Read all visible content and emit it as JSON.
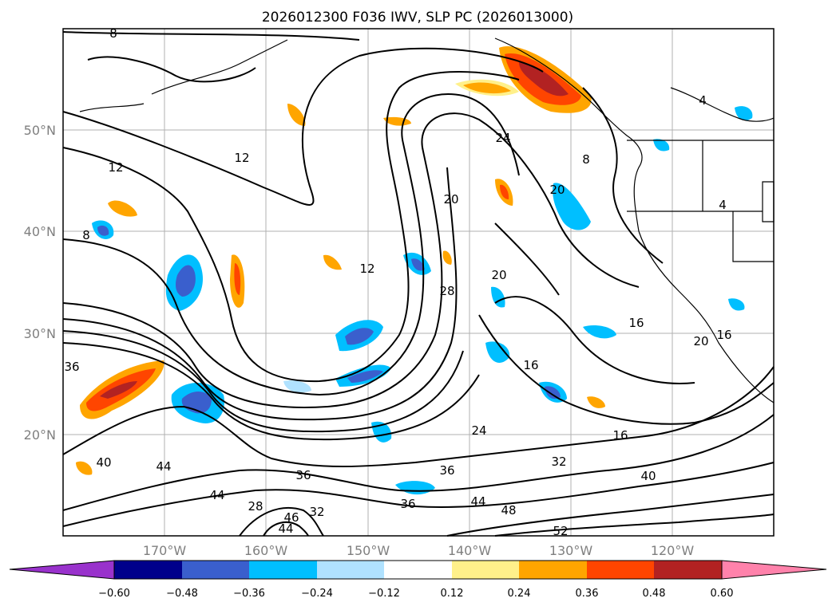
{
  "title": "2026012300 F036 IWV, SLP PC (2026013000)",
  "lat_labels": [
    "50°N",
    "40°N",
    "30°N",
    "20°N"
  ],
  "lon_labels": [
    "170°W",
    "160°W",
    "150°W",
    "140°W",
    "130°W",
    "120°W"
  ],
  "colorbar": {
    "tick_labels": [
      "−0.60",
      "−0.48",
      "−0.36",
      "−0.24",
      "−0.12",
      "0.12",
      "0.24",
      "0.36",
      "0.48",
      "0.60"
    ],
    "colors": [
      "#9932cc",
      "#00008b",
      "#3a5fcd",
      "#00bfff",
      "#b0e2ff",
      "#ffffff",
      "#fff08a",
      "#ffa500",
      "#ff4500",
      "#b22222",
      "#ff82ab"
    ]
  },
  "contour_labels": [
    "8",
    "12",
    "12",
    "12",
    "8",
    "24",
    "20",
    "20",
    "28",
    "20",
    "16",
    "16",
    "20",
    "16",
    "24",
    "32",
    "16",
    "40",
    "36",
    "36",
    "36",
    "44",
    "40",
    "44",
    "28",
    "36",
    "46",
    "44",
    "32",
    "44",
    "48",
    "52",
    "4",
    "4",
    "8"
  ],
  "chart_data": {
    "type": "map",
    "title": "2026012300 F036 IWV, SLP PC (2026013000)",
    "lon_range": [
      -180,
      -110
    ],
    "lat_range": [
      10,
      60
    ],
    "colorbar_levels": [
      -0.6,
      -0.48,
      -0.36,
      -0.24,
      -0.12,
      0.12,
      0.24,
      0.36,
      0.48,
      0.6
    ]
  }
}
